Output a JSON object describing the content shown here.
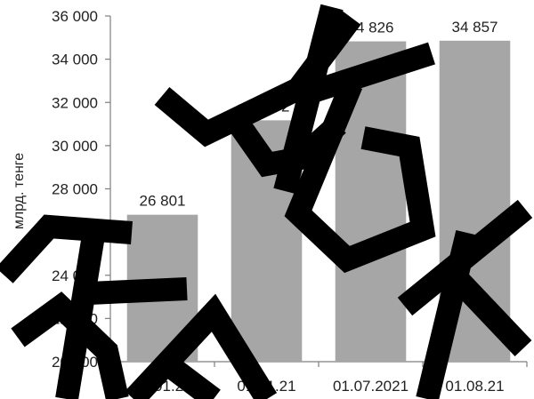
{
  "chart_data": {
    "type": "bar",
    "categories": [
      "01.01.20",
      "01.01.21",
      "01.07.2021",
      "01.08.21"
    ],
    "values": [
      26801,
      31172,
      34826,
      34857
    ],
    "value_labels": [
      "26 801",
      "31 172",
      "34 826",
      "34 857"
    ],
    "title": "",
    "xlabel": "",
    "ylabel": "млрд. тенге",
    "ylim": [
      20000,
      36000
    ],
    "yticks": [
      20000,
      22000,
      24000,
      26000,
      28000,
      30000,
      32000,
      34000,
      36000
    ],
    "ytick_labels": [
      "20 000",
      "22 000",
      "24 000",
      "26 000",
      "28 000",
      "30 000",
      "32 000",
      "34 000",
      "36 000"
    ],
    "grid": false,
    "legend": "none",
    "bar_color": "#a6a6a6",
    "axis_color": "#7f7f7f"
  },
  "watermark": {
    "text": "ЖБК",
    "color": "#000000"
  }
}
